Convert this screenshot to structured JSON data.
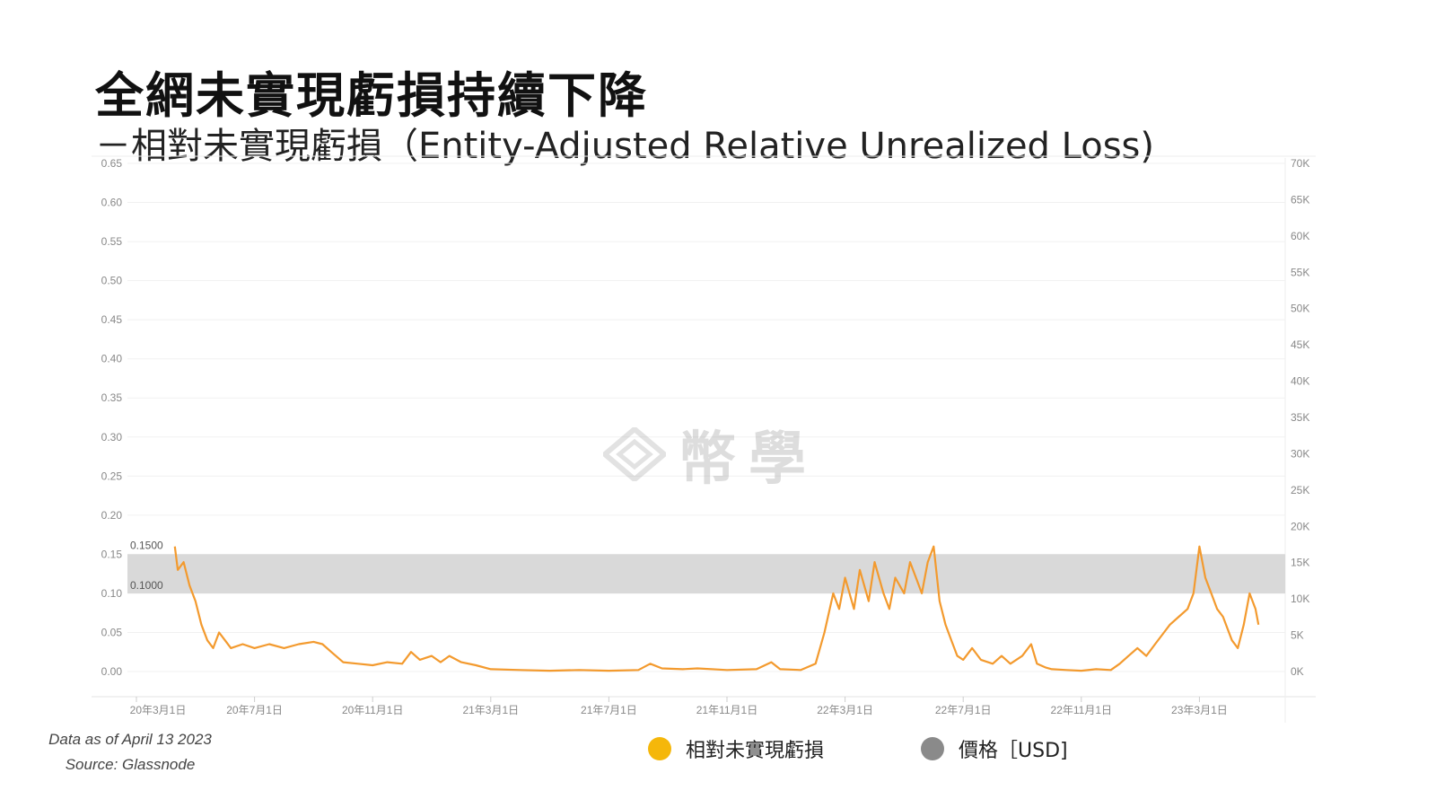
{
  "title": "全網未實現虧損持續下降",
  "subtitle": "－相對未實現虧損（Entity-Adjusted Relative Unrealized Loss)",
  "source": {
    "line1": "Data as of April 13 2023",
    "line2": "Source: Glassnode"
  },
  "legend": [
    {
      "label": "相對未實現虧損",
      "color": "#f5b70a"
    },
    {
      "label": "價格［USD]",
      "color": "#8a8a8a"
    }
  ],
  "watermark": "幣學",
  "chart_data": {
    "type": "line",
    "series_colors": {
      "loss": "#f39a2e",
      "price": "#4f4747"
    },
    "left_axis": {
      "ticks": [
        "0.00",
        "0.05",
        "0.10",
        "0.15",
        "0.20",
        "0.25",
        "0.30",
        "0.35",
        "0.40",
        "0.45",
        "0.50",
        "0.55",
        "0.60",
        "0.65"
      ],
      "ylim": [
        0,
        0.65
      ]
    },
    "right_axis": {
      "ticks": [
        "0K",
        "5K",
        "10K",
        "15K",
        "20K",
        "25K",
        "30K",
        "35K",
        "40K",
        "45K",
        "50K",
        "55K",
        "60K",
        "65K",
        "70K"
      ],
      "ylim": [
        0,
        70000
      ]
    },
    "x_ticks": [
      "20年3月1日",
      "20年7月1日",
      "20年11月1日",
      "21年3月1日",
      "21年7月1日",
      "21年11月1日",
      "22年3月1日",
      "22年7月1日",
      "22年11月1日",
      "23年3月1日"
    ],
    "band": {
      "low": 0.1,
      "high": 0.15,
      "low_label": "0.1000",
      "high_label": "0.1500",
      "color": "#d9d9d9"
    },
    "x_range_months": [
      0,
      38
    ],
    "series": [
      {
        "key": "loss",
        "points": [
          [
            1.3,
            0.16
          ],
          [
            1.4,
            0.13
          ],
          [
            1.6,
            0.14
          ],
          [
            1.8,
            0.11
          ],
          [
            2.0,
            0.09
          ],
          [
            2.2,
            0.06
          ],
          [
            2.4,
            0.04
          ],
          [
            2.6,
            0.03
          ],
          [
            2.8,
            0.05
          ],
          [
            3.0,
            0.04
          ],
          [
            3.2,
            0.03
          ],
          [
            3.6,
            0.035
          ],
          [
            4.0,
            0.03
          ],
          [
            4.5,
            0.035
          ],
          [
            5.0,
            0.03
          ],
          [
            5.5,
            0.035
          ],
          [
            6.0,
            0.038
          ],
          [
            6.3,
            0.035
          ],
          [
            6.6,
            0.025
          ],
          [
            7.0,
            0.012
          ],
          [
            7.5,
            0.01
          ],
          [
            8.0,
            0.008
          ],
          [
            8.5,
            0.012
          ],
          [
            9.0,
            0.01
          ],
          [
            9.3,
            0.025
          ],
          [
            9.6,
            0.015
          ],
          [
            10.0,
            0.02
          ],
          [
            10.3,
            0.012
          ],
          [
            10.6,
            0.02
          ],
          [
            11.0,
            0.012
          ],
          [
            11.5,
            0.008
          ],
          [
            12.0,
            0.003
          ],
          [
            13.0,
            0.002
          ],
          [
            14.0,
            0.001
          ],
          [
            15.0,
            0.002
          ],
          [
            16.0,
            0.001
          ],
          [
            17.0,
            0.002
          ],
          [
            17.4,
            0.01
          ],
          [
            17.8,
            0.004
          ],
          [
            18.5,
            0.003
          ],
          [
            19.0,
            0.004
          ],
          [
            20.0,
            0.002
          ],
          [
            21.0,
            0.003
          ],
          [
            21.5,
            0.012
          ],
          [
            21.8,
            0.003
          ],
          [
            22.5,
            0.002
          ],
          [
            23.0,
            0.01
          ],
          [
            23.3,
            0.05
          ],
          [
            23.6,
            0.1
          ],
          [
            23.8,
            0.08
          ],
          [
            24.0,
            0.12
          ],
          [
            24.3,
            0.08
          ],
          [
            24.5,
            0.13
          ],
          [
            24.8,
            0.09
          ],
          [
            25.0,
            0.14
          ],
          [
            25.3,
            0.1
          ],
          [
            25.5,
            0.08
          ],
          [
            25.7,
            0.12
          ],
          [
            26.0,
            0.1
          ],
          [
            26.2,
            0.14
          ],
          [
            26.4,
            0.12
          ],
          [
            26.6,
            0.1
          ],
          [
            26.8,
            0.14
          ],
          [
            27.0,
            0.16
          ],
          [
            27.2,
            0.09
          ],
          [
            27.4,
            0.06
          ],
          [
            27.6,
            0.04
          ],
          [
            27.8,
            0.02
          ],
          [
            28.0,
            0.015
          ],
          [
            28.3,
            0.03
          ],
          [
            28.6,
            0.015
          ],
          [
            29.0,
            0.01
          ],
          [
            29.3,
            0.02
          ],
          [
            29.6,
            0.01
          ],
          [
            30.0,
            0.02
          ],
          [
            30.3,
            0.035
          ],
          [
            30.5,
            0.01
          ],
          [
            30.8,
            0.005
          ],
          [
            31.0,
            0.003
          ],
          [
            31.5,
            0.002
          ],
          [
            32.0,
            0.001
          ],
          [
            32.5,
            0.003
          ],
          [
            33.0,
            0.002
          ],
          [
            33.3,
            0.01
          ],
          [
            33.6,
            0.02
          ],
          [
            33.9,
            0.03
          ],
          [
            34.2,
            0.02
          ],
          [
            34.5,
            0.035
          ],
          [
            34.8,
            0.05
          ],
          [
            35.0,
            0.06
          ],
          [
            35.3,
            0.07
          ],
          [
            35.6,
            0.08
          ],
          [
            35.8,
            0.1
          ],
          [
            36.0,
            0.16
          ],
          [
            36.2,
            0.12
          ],
          [
            36.4,
            0.1
          ],
          [
            36.6,
            0.08
          ],
          [
            36.8,
            0.07
          ],
          [
            37.0,
            0.05
          ],
          [
            37.1,
            0.04
          ],
          [
            37.3,
            0.03
          ],
          [
            37.5,
            0.06
          ],
          [
            37.7,
            0.1
          ],
          [
            37.9,
            0.08
          ],
          [
            38.0,
            0.06
          ]
        ]
      }
    ]
  }
}
